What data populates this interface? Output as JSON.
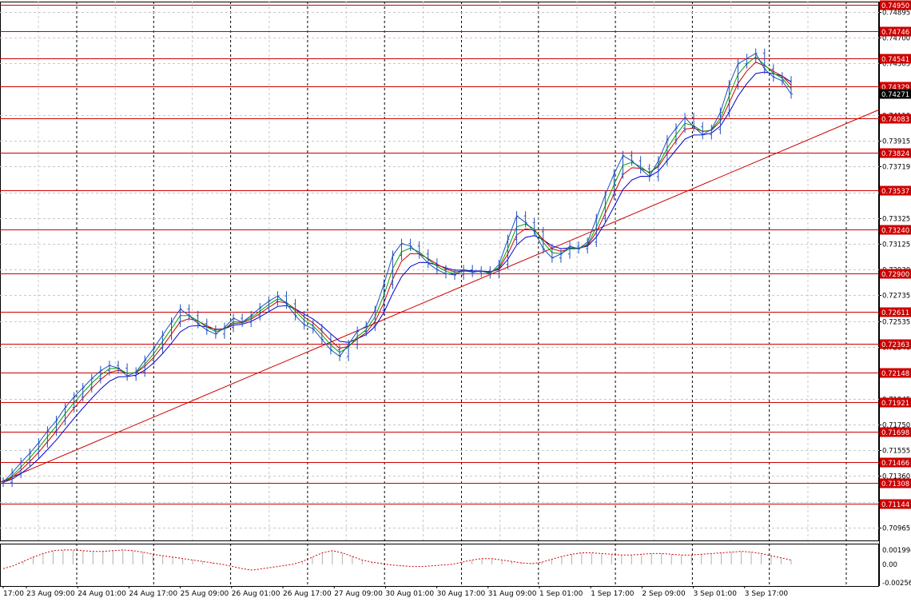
{
  "chart_data": {
    "type": "line",
    "title": "",
    "main": {
      "ylim": [
        0.70965,
        0.4995
      ],
      "y_min": 0.7101,
      "y_max": 0.7497,
      "price_ticks": [
        "0.74895",
        "0.74700",
        "0.74505",
        "0.74110",
        "0.73915",
        "0.73719",
        "0.73520",
        "0.73325",
        "0.73125",
        "0.72930",
        "0.72735",
        "0.72535",
        "0.72340",
        "0.72145",
        "0.71945",
        "0.71750",
        "0.71555",
        "0.71360",
        "0.71160",
        "0.70965"
      ],
      "horizontal_levels": [
        {
          "value": 0.7495,
          "label": "0.74950"
        },
        {
          "value": 0.74746,
          "label": "0.74746"
        },
        {
          "value": 0.74541,
          "label": "0.74541"
        },
        {
          "value": 0.74329,
          "label": "0.74329"
        },
        {
          "value": 0.74083,
          "label": "0.74083"
        },
        {
          "value": 0.73824,
          "label": "0.73824"
        },
        {
          "value": 0.73537,
          "label": "0.73537"
        },
        {
          "value": 0.7324,
          "label": "0.73240"
        },
        {
          "value": 0.729,
          "label": "0.72900"
        },
        {
          "value": 0.72611,
          "label": "0.72611"
        },
        {
          "value": 0.72363,
          "label": "0.72363"
        },
        {
          "value": 0.72148,
          "label": "0.72148"
        },
        {
          "value": 0.71921,
          "label": "0.71921"
        },
        {
          "value": 0.71698,
          "label": "0.71698"
        },
        {
          "value": 0.71466,
          "label": "0.71466"
        },
        {
          "value": 0.71308,
          "label": "0.71308"
        },
        {
          "value": 0.71144,
          "label": "0.71144"
        }
      ],
      "current_price": {
        "value": 0.74271,
        "label": "0.74271"
      },
      "trendline": {
        "from_x_label": "23 Aug 09:00",
        "from_value": 0.7131,
        "to_value": 0.7415
      },
      "price_series": [
        0.7131,
        0.7138,
        0.7146,
        0.7153,
        0.7161,
        0.717,
        0.7178,
        0.7188,
        0.7196,
        0.7203,
        0.721,
        0.7216,
        0.722,
        0.7218,
        0.7212,
        0.7215,
        0.7224,
        0.7233,
        0.7243,
        0.7253,
        0.7263,
        0.7258,
        0.7252,
        0.7247,
        0.7244,
        0.7249,
        0.7256,
        0.7253,
        0.7258,
        0.7264,
        0.7269,
        0.7273,
        0.7267,
        0.7258,
        0.7251,
        0.7248,
        0.724,
        0.7232,
        0.7227,
        0.7236,
        0.7246,
        0.725,
        0.7262,
        0.7282,
        0.7304,
        0.7313,
        0.7311,
        0.7305,
        0.7298,
        0.7293,
        0.729,
        0.7289,
        0.7293,
        0.7291,
        0.7292,
        0.729,
        0.7297,
        0.7316,
        0.7334,
        0.7329,
        0.7322,
        0.7309,
        0.7302,
        0.7305,
        0.7311,
        0.7309,
        0.7314,
        0.7332,
        0.735,
        0.7366,
        0.738,
        0.7376,
        0.737,
        0.7364,
        0.7376,
        0.7392,
        0.7401,
        0.7409,
        0.7402,
        0.7396,
        0.74,
        0.7413,
        0.7434,
        0.745,
        0.7454,
        0.7458,
        0.7446,
        0.744,
        0.7437,
        0.7427
      ],
      "ma_fast": [],
      "ma_mid": [],
      "ma_slow": []
    },
    "oscillator": {
      "ticks": [
        "0.001994",
        "0.00",
        "-0.002566"
      ],
      "ylim": [
        -0.002566,
        0.001994
      ],
      "values": [
        -0.0006,
        -0.0002,
        0.0004,
        0.001,
        0.0015,
        0.0019,
        0.002,
        0.002,
        0.0019,
        0.0018,
        0.0018,
        0.0019,
        0.002,
        0.0019,
        0.0017,
        0.0014,
        0.0012,
        0.001,
        0.0008,
        0.0006,
        0.0004,
        0.0002,
        0.0,
        -0.0003,
        -0.0006,
        -0.0008,
        -0.0006,
        -0.0004,
        -0.0002,
        0.0,
        0.0004,
        0.001,
        0.0016,
        0.0019,
        0.0016,
        0.0011,
        0.0006,
        0.0003,
        0.0001,
        -0.0001,
        -0.0002,
        -0.0003,
        -0.0003,
        -0.0002,
        -0.0001,
        0.0,
        0.0003,
        0.0006,
        0.0008,
        0.0008,
        0.0006,
        0.0004,
        0.0002,
        0.0001,
        0.0003,
        0.0007,
        0.0011,
        0.0014,
        0.0016,
        0.0016,
        0.0015,
        0.0014,
        0.0013,
        0.0013,
        0.0014,
        0.0015,
        0.0015,
        0.0014,
        0.0013,
        0.0013,
        0.0014,
        0.0015,
        0.0016,
        0.0017,
        0.0018,
        0.0017,
        0.0015,
        0.0012,
        0.0009,
        0.0006
      ]
    },
    "x_labels": [
      "17:00",
      "23 Aug 09:00",
      "24 Aug 01:00",
      "24 Aug 17:00",
      "25 Aug 09:00",
      "26 Aug 01:00",
      "26 Aug 17:00",
      "27 Aug 09:00",
      "30 Aug 01:00",
      "30 Aug 17:00",
      "31 Aug 09:00",
      "1 Sep 01:00",
      "1 Sep 17:00",
      "2 Sep 09:00",
      "3 Sep 01:00",
      "3 Sep 17:00"
    ],
    "colors": {
      "level_line": "#cc0000",
      "price": "#1f4fbf",
      "ma_fast": "#00a000",
      "ma_mid": "#cc0000",
      "ma_slow": "#0000cc",
      "trendline": "#cc0000",
      "osc_pos": "#b0b0b0",
      "osc_neg": "#cc0000",
      "current_bg": "#000000"
    },
    "grid": true
  }
}
